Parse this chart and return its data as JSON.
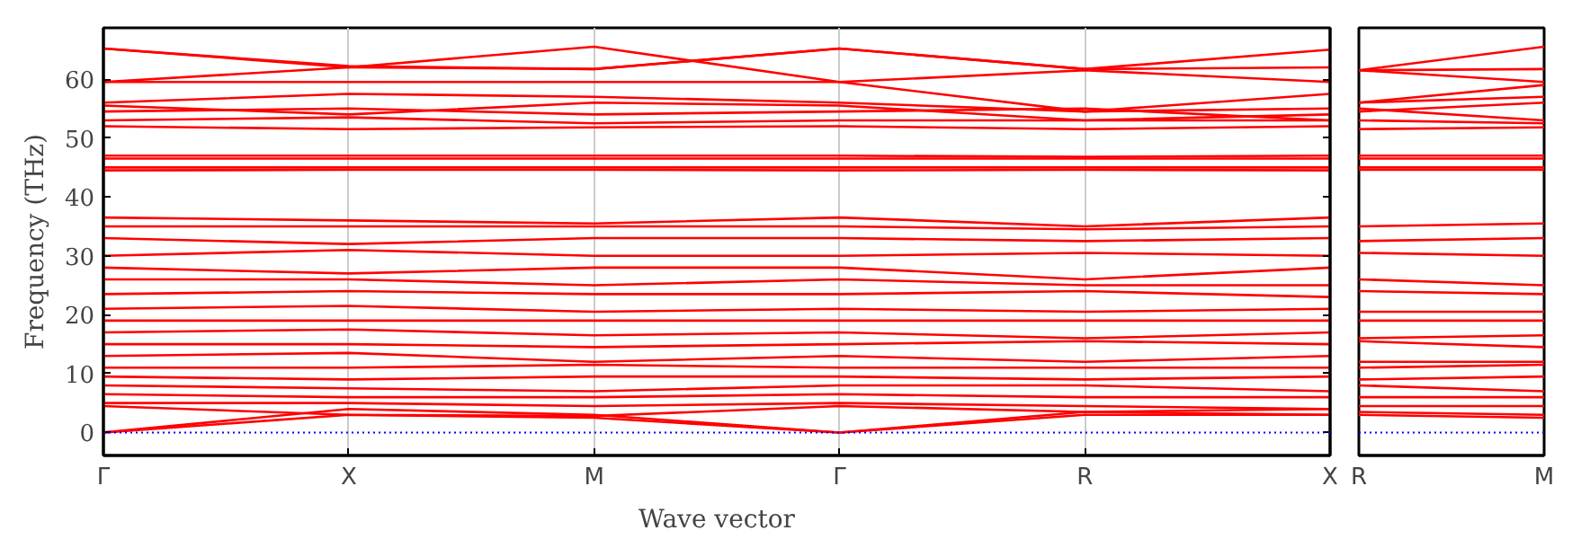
{
  "chart_data": [
    {
      "type": "line",
      "xlabel": "Wave vector",
      "ylabel": "Frequency (THz)",
      "categories": [
        "Γ",
        "X",
        "M",
        "Γ",
        "R",
        "X"
      ],
      "ylim": [
        -3.9,
        68.7
      ],
      "yticks": [
        0,
        10,
        20,
        30,
        40,
        50,
        60
      ],
      "grid": "x",
      "ref_lines": [
        {
          "axis": "y",
          "value": 0,
          "color": "#0000ff",
          "line_style": "dotted"
        }
      ],
      "series": [
        {
          "color": "#ff0000",
          "values": [
            0,
            3,
            2.5,
            0,
            3,
            3
          ]
        },
        {
          "color": "#ff0000",
          "values": [
            0,
            4,
            3,
            0,
            3.5,
            4
          ]
        },
        {
          "color": "#ff0000",
          "values": [
            4.5,
            3,
            2.8,
            4.5,
            3.5,
            3
          ]
        },
        {
          "color": "#ff0000",
          "values": [
            5,
            5,
            4.5,
            5,
            4.5,
            4
          ]
        },
        {
          "color": "#ff0000",
          "values": [
            6.5,
            6,
            6,
            6.5,
            6,
            6
          ]
        },
        {
          "color": "#ff0000",
          "values": [
            8,
            7.5,
            7,
            8,
            8,
            7
          ]
        },
        {
          "color": "#ff0000",
          "values": [
            9.5,
            9,
            9.5,
            9.5,
            9,
            9.5
          ]
        },
        {
          "color": "#ff0000",
          "values": [
            11,
            11,
            11.5,
            11,
            11,
            11
          ]
        },
        {
          "color": "#ff0000",
          "values": [
            13,
            13.5,
            12,
            13,
            12,
            13
          ]
        },
        {
          "color": "#ff0000",
          "values": [
            15,
            15,
            14.5,
            15,
            15.5,
            15
          ]
        },
        {
          "color": "#ff0000",
          "values": [
            17,
            17.5,
            16.5,
            17,
            16,
            17
          ]
        },
        {
          "color": "#ff0000",
          "values": [
            19,
            19,
            19,
            19,
            19,
            19
          ]
        },
        {
          "color": "#ff0000",
          "values": [
            21,
            21.5,
            20.5,
            21,
            20.5,
            21
          ]
        },
        {
          "color": "#ff0000",
          "values": [
            23.5,
            24,
            23.5,
            23.5,
            24,
            23
          ]
        },
        {
          "color": "#ff0000",
          "values": [
            26,
            26,
            25,
            26,
            25,
            25
          ]
        },
        {
          "color": "#ff0000",
          "values": [
            28,
            27,
            28,
            28,
            26,
            28
          ]
        },
        {
          "color": "#ff0000",
          "values": [
            30,
            31,
            30,
            30,
            30.5,
            30
          ]
        },
        {
          "color": "#ff0000",
          "values": [
            33,
            32,
            33,
            33,
            32.5,
            33
          ]
        },
        {
          "color": "#ff0000",
          "values": [
            35,
            35,
            35,
            35,
            34.5,
            35
          ]
        },
        {
          "color": "#ff0000",
          "values": [
            36.5,
            36,
            35.5,
            36.5,
            35,
            36.5
          ]
        },
        {
          "color": "#ff0000",
          "values": [
            44.5,
            44.6,
            44.6,
            44.5,
            44.6,
            44.5
          ]
        },
        {
          "color": "#ff0000",
          "values": [
            45,
            45,
            45,
            45,
            45,
            45
          ]
        },
        {
          "color": "#ff0000",
          "values": [
            46.5,
            46.5,
            46.5,
            46.5,
            46.5,
            46.5
          ]
        },
        {
          "color": "#ff0000",
          "values": [
            47,
            47,
            47,
            47,
            46.8,
            47
          ]
        },
        {
          "color": "#ff0000",
          "values": [
            52,
            51.5,
            51.8,
            52,
            51.5,
            52
          ]
        },
        {
          "color": "#ff0000",
          "values": [
            53,
            53.5,
            52.5,
            53,
            53,
            53
          ]
        },
        {
          "color": "#ff0000",
          "values": [
            54.5,
            55,
            54,
            54.5,
            55,
            53
          ]
        },
        {
          "color": "#ff0000",
          "values": [
            55.5,
            54,
            56,
            55.5,
            53,
            54
          ]
        },
        {
          "color": "#ff0000",
          "values": [
            56,
            57.5,
            57,
            56,
            54.5,
            55
          ]
        },
        {
          "color": "#ff0000",
          "values": [
            59.5,
            59.5,
            59.5,
            59.5,
            54.5,
            57.5
          ]
        },
        {
          "color": "#ff0000",
          "values": [
            59.5,
            62,
            65.5,
            59.5,
            61.5,
            59.5
          ]
        },
        {
          "color": "#ff0000",
          "values": [
            65.2,
            62,
            61.7,
            65.2,
            61.7,
            62
          ]
        },
        {
          "color": "#ff0000",
          "values": [
            65.2,
            62.2,
            61.7,
            65.2,
            61.7,
            65
          ]
        }
      ]
    },
    {
      "type": "line",
      "categories": [
        "R",
        "M"
      ],
      "ylim": [
        -3.9,
        68.7
      ],
      "yticks": [
        0,
        10,
        20,
        30,
        40,
        50,
        60
      ],
      "tick_labels": "x",
      "ref_lines": [
        {
          "axis": "y",
          "value": 0,
          "color": "#0000ff",
          "line_style": "dotted"
        }
      ],
      "series": [
        {
          "color": "#ff0000",
          "values": [
            3,
            2.5
          ]
        },
        {
          "color": "#ff0000",
          "values": [
            3.5,
            3
          ]
        },
        {
          "color": "#ff0000",
          "values": [
            4.5,
            4.5
          ]
        },
        {
          "color": "#ff0000",
          "values": [
            6,
            6
          ]
        },
        {
          "color": "#ff0000",
          "values": [
            8,
            7
          ]
        },
        {
          "color": "#ff0000",
          "values": [
            9,
            9.5
          ]
        },
        {
          "color": "#ff0000",
          "values": [
            11,
            11.5
          ]
        },
        {
          "color": "#ff0000",
          "values": [
            12,
            12
          ]
        },
        {
          "color": "#ff0000",
          "values": [
            15.5,
            14.5
          ]
        },
        {
          "color": "#ff0000",
          "values": [
            16,
            16.5
          ]
        },
        {
          "color": "#ff0000",
          "values": [
            19,
            19
          ]
        },
        {
          "color": "#ff0000",
          "values": [
            20.5,
            20.5
          ]
        },
        {
          "color": "#ff0000",
          "values": [
            24,
            23.5
          ]
        },
        {
          "color": "#ff0000",
          "values": [
            26,
            25
          ]
        },
        {
          "color": "#ff0000",
          "values": [
            30.5,
            30
          ]
        },
        {
          "color": "#ff0000",
          "values": [
            32.5,
            33
          ]
        },
        {
          "color": "#ff0000",
          "values": [
            35,
            35.5
          ]
        },
        {
          "color": "#ff0000",
          "values": [
            44.6,
            44.6
          ]
        },
        {
          "color": "#ff0000",
          "values": [
            45,
            45
          ]
        },
        {
          "color": "#ff0000",
          "values": [
            46.5,
            46.5
          ]
        },
        {
          "color": "#ff0000",
          "values": [
            47,
            47
          ]
        },
        {
          "color": "#ff0000",
          "values": [
            51.5,
            51.8
          ]
        },
        {
          "color": "#ff0000",
          "values": [
            53,
            52.5
          ]
        },
        {
          "color": "#ff0000",
          "values": [
            55,
            53
          ]
        },
        {
          "color": "#ff0000",
          "values": [
            54.5,
            56
          ]
        },
        {
          "color": "#ff0000",
          "values": [
            56,
            57
          ]
        },
        {
          "color": "#ff0000",
          "values": [
            56,
            59
          ]
        },
        {
          "color": "#ff0000",
          "values": [
            61.5,
            59.5
          ]
        },
        {
          "color": "#ff0000",
          "values": [
            61.5,
            61.7
          ]
        },
        {
          "color": "#ff0000",
          "values": [
            61.5,
            65.5
          ]
        }
      ]
    }
  ]
}
